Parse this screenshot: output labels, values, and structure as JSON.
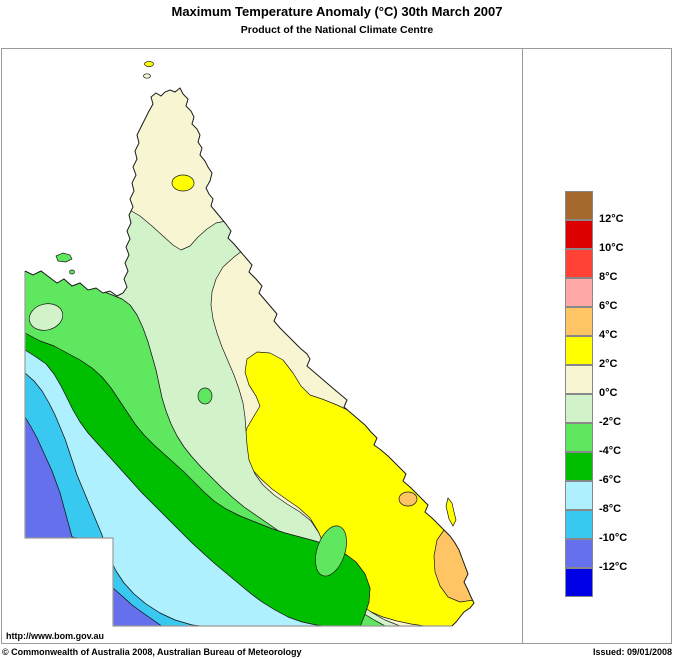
{
  "header": {
    "title": "Maximum Temperature Anomaly (°C)  30th March 2007",
    "subtitle": "Product of the National Climate Centre"
  },
  "map": {
    "region": "Queensland, Australia",
    "kind": "filled contour temperature anomaly map"
  },
  "palette": {
    "sea": "#ffffff",
    "brown": "#A5682D",
    "red_dark": "#DD0000",
    "red": "#FF4136",
    "pink": "#FFA8A8",
    "orange": "#FFC464",
    "yellow": "#FFFF00",
    "cream": "#F8F6D2",
    "green_pale": "#D2F2CA",
    "green_light": "#5FE85F",
    "green": "#00BE00",
    "cyan_pale": "#AFF0FF",
    "cyan": "#38C8F0",
    "blue_violet": "#6470EC",
    "blue": "#0000E6"
  },
  "legend": {
    "unit": "°C",
    "entries": [
      {
        "color": "#A5682D",
        "label": "12°C"
      },
      {
        "color": "#DD0000",
        "label": "10°C"
      },
      {
        "color": "#FF4136",
        "label": "8°C"
      },
      {
        "color": "#FFA8A8",
        "label": "6°C"
      },
      {
        "color": "#FFC464",
        "label": "4°C"
      },
      {
        "color": "#FFFF00",
        "label": "2°C"
      },
      {
        "color": "#F8F6D2",
        "label": "0°C"
      },
      {
        "color": "#D2F2CA",
        "label": "-2°C"
      },
      {
        "color": "#5FE85F",
        "label": "-4°C"
      },
      {
        "color": "#00BE00",
        "label": "-6°C"
      },
      {
        "color": "#AFF0FF",
        "label": "-8°C"
      },
      {
        "color": "#38C8F0",
        "label": "-10°C"
      },
      {
        "color": "#6470EC",
        "label": "-12°C"
      },
      {
        "color": "#0000E6",
        "label": null
      }
    ]
  },
  "footer": {
    "url": "http://www.bom.gov.au",
    "copyright": "© Commonwealth of Australia 2008, Australian Bureau of Meteorology",
    "issued": "Issued: 09/01/2008"
  }
}
